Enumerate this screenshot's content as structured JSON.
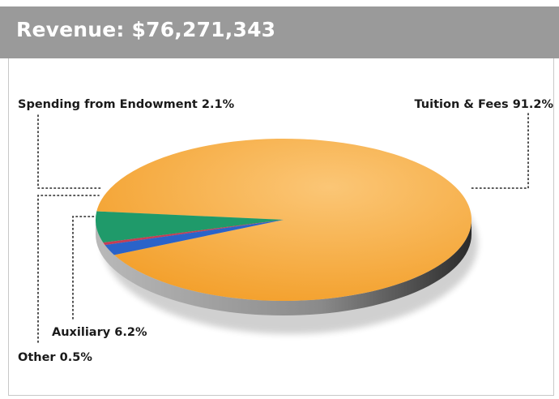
{
  "header": {
    "title": "Revenue: $76,271,343"
  },
  "colors": {
    "header_bg": "#9a9a9a",
    "tuition": "#f7a83a",
    "endowment": "#2a63c9",
    "other": "#c43d55",
    "auxiliary": "#1f9a6a",
    "side": "#5e5e5e"
  },
  "chart_data": {
    "type": "pie",
    "title": "Revenue: $76,271,343",
    "style": "3d",
    "slices": [
      {
        "key": "tuition",
        "label": "Tuition & Fees",
        "percent": 91.2,
        "percent_label": "91.2%"
      },
      {
        "key": "endowment",
        "label": "Spending from Endowment",
        "percent": 2.1,
        "percent_label": "2.1%"
      },
      {
        "key": "other",
        "label": "Other",
        "percent": 0.5,
        "percent_label": "0.5%"
      },
      {
        "key": "auxiliary",
        "label": "Auxiliary",
        "percent": 6.2,
        "percent_label": "6.2%"
      }
    ]
  }
}
